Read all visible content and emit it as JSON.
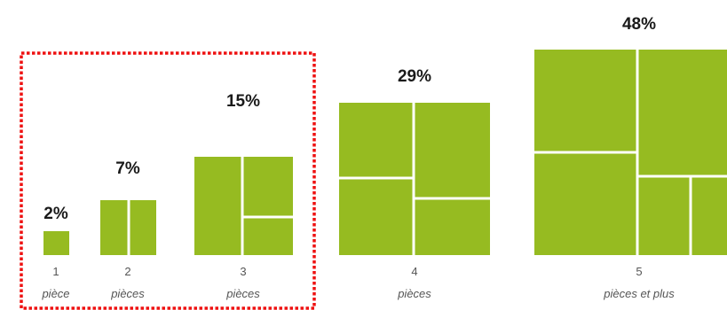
{
  "chart_data": {
    "type": "treemap-bars",
    "colors": {
      "fill": "#96bb21",
      "divider": "#ffffff",
      "highlight_border": "#ee1111"
    },
    "highlight": {
      "style": "dashed",
      "covers_categories": [
        "1",
        "2",
        "3"
      ]
    },
    "categories": [
      {
        "number": "1",
        "unit": "pièce",
        "percent": 2,
        "label": "2%"
      },
      {
        "number": "2",
        "unit": "pièces",
        "percent": 7,
        "label": "7%"
      },
      {
        "number": "3",
        "unit": "pièces",
        "percent": 15,
        "label": "15%"
      },
      {
        "number": "4",
        "unit": "pièces",
        "percent": 29,
        "label": "29%"
      },
      {
        "number": "5",
        "unit": "pièces et plus",
        "percent": 48,
        "label": "48%"
      }
    ]
  }
}
